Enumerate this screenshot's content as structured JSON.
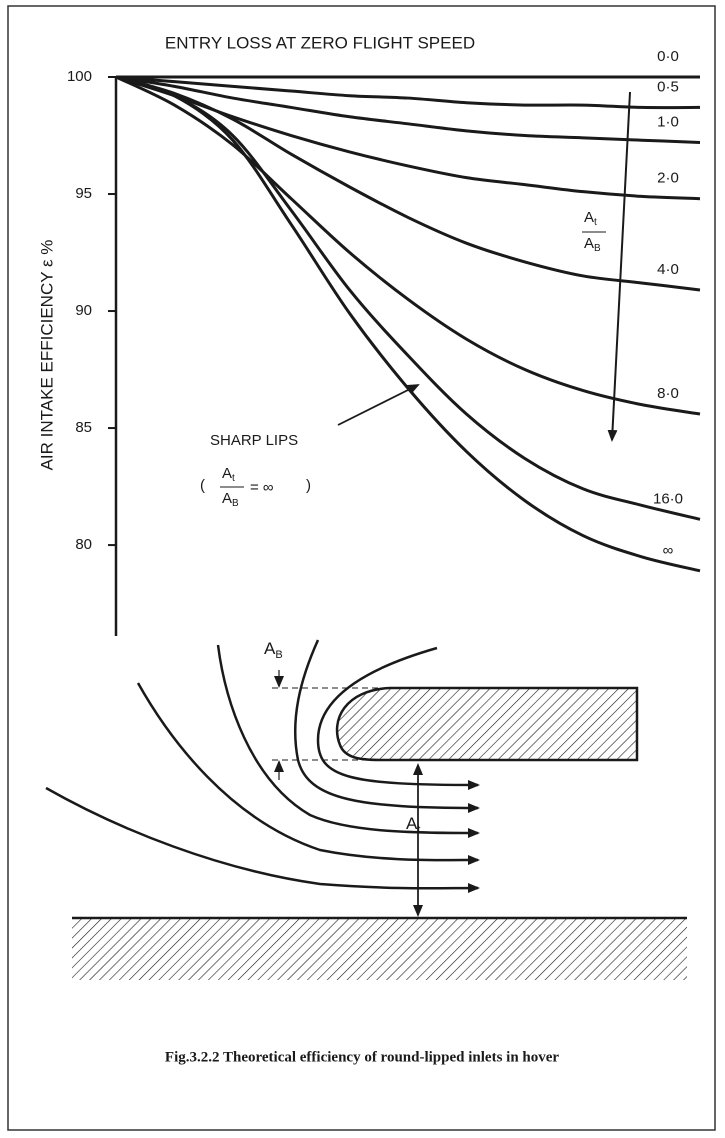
{
  "chart_data": {
    "type": "line",
    "title": "ENTRY LOSS AT ZERO FLIGHT SPEED",
    "y_label": "AIR INTAKE EFFICIENCY ε %",
    "categories": [
      null,
      null,
      null,
      null,
      null,
      null,
      null,
      null,
      null,
      null,
      null
    ],
    "ylim": [
      76.2,
      100
    ],
    "yticks": [
      80,
      85,
      90,
      95,
      100
    ],
    "color": "#1a1a1a",
    "series": [
      {
        "name": "0·0",
        "values": [
          100,
          100,
          100,
          100,
          100,
          100,
          100,
          100,
          100,
          100,
          100
        ]
      },
      {
        "name": "0·5",
        "values": [
          100,
          99.8,
          99.6,
          99.4,
          99.2,
          99.1,
          98.9,
          98.8,
          98.8,
          98.7,
          98.7
        ]
      },
      {
        "name": "1·0",
        "values": [
          100,
          99.6,
          99.1,
          98.7,
          98.3,
          98.0,
          97.7,
          97.5,
          97.4,
          97.3,
          97.2
        ]
      },
      {
        "name": "2·0",
        "values": [
          100,
          99.2,
          98.3,
          97.5,
          96.8,
          96.2,
          95.7,
          95.4,
          95.1,
          94.9,
          94.8
        ]
      },
      {
        "name": "4·0",
        "values": [
          100,
          99.3,
          98.2,
          96.7,
          95.3,
          94.0,
          92.9,
          92.1,
          91.5,
          91.2,
          90.9
        ]
      },
      {
        "name": "8·0",
        "values": [
          100,
          98.8,
          97.1,
          94.8,
          92.5,
          90.5,
          88.8,
          87.5,
          86.6,
          86.0,
          85.6
        ]
      },
      {
        "name": "16·0",
        "values": [
          100,
          99.2,
          97.5,
          94.3,
          90.9,
          88.1,
          85.6,
          83.7,
          82.4,
          81.7,
          81.1
        ]
      },
      {
        "name": "∞",
        "values": [
          100,
          99.2,
          97.3,
          93.7,
          89.9,
          86.7,
          84.0,
          81.9,
          80.4,
          79.5,
          78.9
        ]
      }
    ],
    "annotations": {
      "sharp_lips": "SHARP LIPS",
      "equals_infinity": "= ∞"
    },
    "ratio": {
      "numerator": {
        "base": "A",
        "sub": "t"
      },
      "denominator": {
        "base": "A",
        "sub": "B"
      }
    }
  },
  "caption": "Fig.3.2.2  Theoretical efficiency of round-lipped inlets in hover"
}
